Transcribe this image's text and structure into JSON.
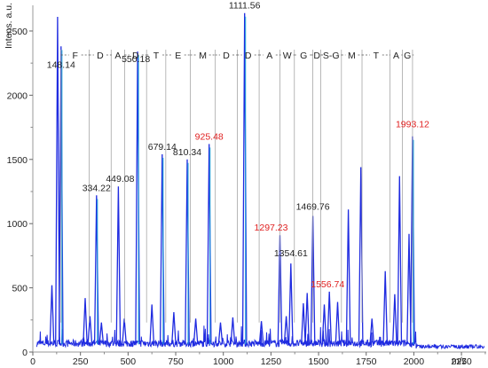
{
  "chart_data": {
    "type": "line",
    "ylabel": "Intens. a.u.",
    "xlabel": "m/z",
    "xlim": [
      0,
      2380
    ],
    "ylim": [
      0,
      2700
    ],
    "xticks": [
      0,
      250,
      500,
      750,
      1000,
      1250,
      1500,
      1750,
      2000,
      2250
    ],
    "yticks": [
      0,
      500,
      1000,
      1500,
      2000,
      2500
    ],
    "colors": {
      "spectrum": "#1f2be0",
      "spectrum_light": "#8a92f2",
      "highlight_peaks": "#1aa3d9",
      "label_normal": "#222222",
      "label_red": "#e02020",
      "bracket_lines": "#9a9a9a"
    },
    "peaks": [
      {
        "mz": 148.14,
        "intensity": 2380,
        "label": "148.14",
        "color": "black"
      },
      {
        "mz": 334.22,
        "intensity": 1220,
        "label": "334.22",
        "color": "black"
      },
      {
        "mz": 449.08,
        "intensity": 1290,
        "label": "449.08",
        "color": "black"
      },
      {
        "mz": 550.18,
        "intensity": 2340,
        "label": "550.18",
        "color": "black"
      },
      {
        "mz": 679.14,
        "intensity": 1540,
        "label": "679.14",
        "color": "black"
      },
      {
        "mz": 810.34,
        "intensity": 1500,
        "label": "810.34",
        "color": "black"
      },
      {
        "mz": 925.48,
        "intensity": 1620,
        "label": "925.48",
        "color": "red"
      },
      {
        "mz": 1111.56,
        "intensity": 2640,
        "label": "1111.56",
        "color": "black"
      },
      {
        "mz": 1297.23,
        "intensity": 910,
        "label": "1297.23",
        "color": "red"
      },
      {
        "mz": 1354.61,
        "intensity": 690,
        "label": "1354.61",
        "color": "black"
      },
      {
        "mz": 1469.76,
        "intensity": 1060,
        "label": "1469.76",
        "color": "black"
      },
      {
        "mz": 1556.74,
        "intensity": 470,
        "label": "1556.74",
        "color": "red"
      },
      {
        "mz": 1993.12,
        "intensity": 1680,
        "label": "1993.12",
        "color": "red"
      }
    ],
    "extra_peaks": [
      {
        "mz": 130,
        "intensity": 2610
      },
      {
        "mz": 100,
        "intensity": 520
      },
      {
        "mz": 275,
        "intensity": 420
      },
      {
        "mz": 300,
        "intensity": 280
      },
      {
        "mz": 360,
        "intensity": 230
      },
      {
        "mz": 480,
        "intensity": 260
      },
      {
        "mz": 625,
        "intensity": 370
      },
      {
        "mz": 740,
        "intensity": 310
      },
      {
        "mz": 855,
        "intensity": 260
      },
      {
        "mz": 985,
        "intensity": 230
      },
      {
        "mz": 1050,
        "intensity": 270
      },
      {
        "mz": 1200,
        "intensity": 240
      },
      {
        "mz": 1330,
        "intensity": 280
      },
      {
        "mz": 1420,
        "intensity": 380
      },
      {
        "mz": 1440,
        "intensity": 460
      },
      {
        "mz": 1530,
        "intensity": 370
      },
      {
        "mz": 1600,
        "intensity": 390
      },
      {
        "mz": 1656,
        "intensity": 1110
      },
      {
        "mz": 1722,
        "intensity": 1440
      },
      {
        "mz": 1780,
        "intensity": 260
      },
      {
        "mz": 1850,
        "intensity": 630
      },
      {
        "mz": 1900,
        "intensity": 450
      },
      {
        "mz": 1925,
        "intensity": 1370
      },
      {
        "mz": 1975,
        "intensity": 920
      }
    ],
    "sequence": [
      {
        "mz_start": 148.14,
        "mz_end": 296,
        "residue": "F"
      },
      {
        "mz_start": 296,
        "mz_end": 411,
        "residue": "D"
      },
      {
        "mz_start": 411,
        "mz_end": 482,
        "residue": "A"
      },
      {
        "mz_start": 482,
        "mz_end": 597,
        "residue": "D"
      },
      {
        "mz_start": 597,
        "mz_end": 698,
        "residue": "T"
      },
      {
        "mz_start": 698,
        "mz_end": 827,
        "residue": "E"
      },
      {
        "mz_start": 827,
        "mz_end": 958,
        "residue": "M"
      },
      {
        "mz_start": 958,
        "mz_end": 1073,
        "residue": "D"
      },
      {
        "mz_start": 1073,
        "mz_end": 1188,
        "residue": "D"
      },
      {
        "mz_start": 1188,
        "mz_end": 1297.23,
        "residue": "A"
      },
      {
        "mz_start": 1297.23,
        "mz_end": 1373,
        "residue": "W"
      },
      {
        "mz_start": 1373,
        "mz_end": 1470,
        "residue": "G"
      },
      {
        "mz_start": 1470,
        "mz_end": 1512,
        "residue": "D"
      },
      {
        "mz_start": 1512,
        "mz_end": 1620,
        "residue": "S-G"
      },
      {
        "mz_start": 1620,
        "mz_end": 1728,
        "residue": "M"
      },
      {
        "mz_start": 1728,
        "mz_end": 1875,
        "residue": "T"
      },
      {
        "mz_start": 1875,
        "mz_end": 1940,
        "residue": "A"
      },
      {
        "mz_start": 1940,
        "mz_end": 1993.12,
        "residue": "G"
      }
    ],
    "legend": "none",
    "grid": false
  }
}
